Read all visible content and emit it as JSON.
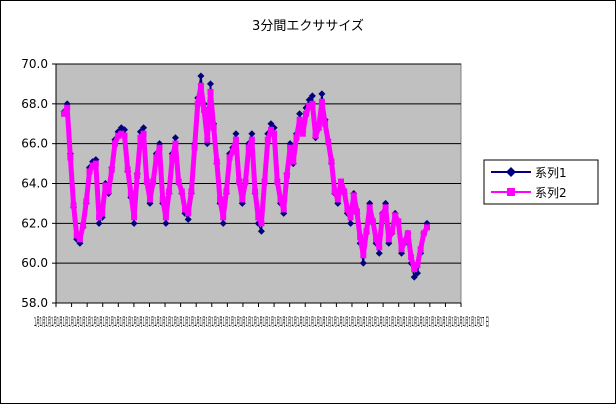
{
  "chart_data": {
    "type": "line",
    "title": "3分間エクササイズ",
    "xlabel": "",
    "ylabel": "",
    "ylim": [
      58.0,
      70.0
    ],
    "ytick_labels": [
      "58.0",
      "60.0",
      "62.0",
      "64.0",
      "66.0",
      "68.0",
      "70.0"
    ],
    "x_axis_text": "1月1月1月1月1月1月1月1月1月1月1月1月1月1月1月1月1月1月1月1月1月1月1月1月1月1月1月1月1月1月1月1月1月1月1月1月1月1月1月1月1月1月1月1月1月1月1月1月1月1月1月1月1月1月1月1月1月1月1月1月1月1月1月1月1月1月1月1月1月1月1月1月1月1月1月1月1月1月27 日",
    "grid": true,
    "legend_position": "right",
    "series": [
      {
        "name": "系列1",
        "color": "#000080",
        "marker": "diamond",
        "values": [
          67.6,
          68.0,
          65.5,
          62.8,
          61.2,
          61.0,
          61.8,
          63.0,
          64.8,
          65.1,
          65.2,
          62.0,
          62.3,
          64.0,
          63.5,
          64.8,
          66.2,
          66.6,
          66.8,
          66.7,
          64.6,
          63.3,
          62.0,
          64.5,
          66.6,
          66.8,
          64.0,
          63.0,
          64.0,
          65.5,
          66.0,
          63.0,
          62.0,
          63.5,
          65.5,
          66.3,
          64.0,
          63.5,
          62.5,
          62.2,
          63.5,
          66.0,
          68.3,
          69.4,
          68.0,
          66.0,
          69.0,
          67.0,
          65.0,
          63.0,
          62.0,
          63.5,
          65.5,
          65.8,
          66.5,
          64.0,
          63.0,
          64.0,
          66.0,
          66.5,
          63.5,
          62.0,
          61.6,
          64.0,
          66.5,
          67.0,
          66.8,
          64.0,
          63.0,
          62.5,
          64.5,
          66.0,
          65.0,
          66.5,
          67.5,
          66.6,
          67.8,
          68.2,
          68.4,
          66.3,
          67.0,
          68.5,
          67.2,
          66.0,
          65.0,
          63.5,
          63.0,
          64.0,
          63.5,
          62.5,
          62.0,
          63.5,
          62.5,
          61.0,
          60.0,
          61.5,
          63.0,
          62.0,
          61.0,
          60.5,
          62.5,
          63.0,
          61.0,
          61.5,
          62.5,
          62.0,
          60.5,
          61.0,
          61.5,
          60.0,
          59.3,
          59.5,
          60.5,
          61.5,
          62.0
        ]
      },
      {
        "name": "系列2",
        "color": "#ff00ff",
        "marker": "square",
        "values": [
          67.5,
          67.8,
          65.3,
          62.9,
          61.4,
          61.2,
          61.9,
          63.1,
          64.6,
          64.9,
          65.0,
          62.3,
          62.5,
          63.9,
          63.6,
          64.7,
          66.0,
          66.4,
          66.5,
          66.4,
          64.7,
          63.5,
          62.3,
          64.4,
          66.3,
          66.5,
          64.1,
          63.2,
          64.1,
          65.3,
          65.8,
          63.2,
          62.3,
          63.6,
          65.3,
          66.0,
          64.1,
          63.6,
          62.7,
          62.5,
          63.6,
          65.8,
          68.0,
          68.9,
          67.7,
          66.2,
          68.6,
          66.8,
          65.1,
          63.2,
          62.3,
          63.6,
          65.3,
          65.6,
          66.2,
          64.1,
          63.2,
          64.1,
          65.8,
          66.2,
          63.6,
          62.3,
          62.0,
          64.1,
          66.2,
          66.7,
          66.5,
          64.1,
          63.2,
          62.7,
          64.4,
          65.8,
          65.1,
          66.3,
          67.2,
          66.5,
          67.5,
          67.9,
          68.0,
          66.4,
          66.8,
          68.1,
          67.0,
          66.1,
          65.1,
          63.6,
          63.2,
          64.1,
          63.6,
          62.7,
          62.3,
          63.4,
          62.6,
          61.3,
          60.4,
          61.6,
          62.8,
          62.1,
          61.2,
          60.8,
          62.4,
          62.8,
          61.2,
          61.6,
          62.4,
          62.1,
          60.7,
          61.1,
          61.5,
          60.3,
          59.7,
          59.9,
          60.7,
          61.5,
          61.8
        ]
      }
    ]
  }
}
